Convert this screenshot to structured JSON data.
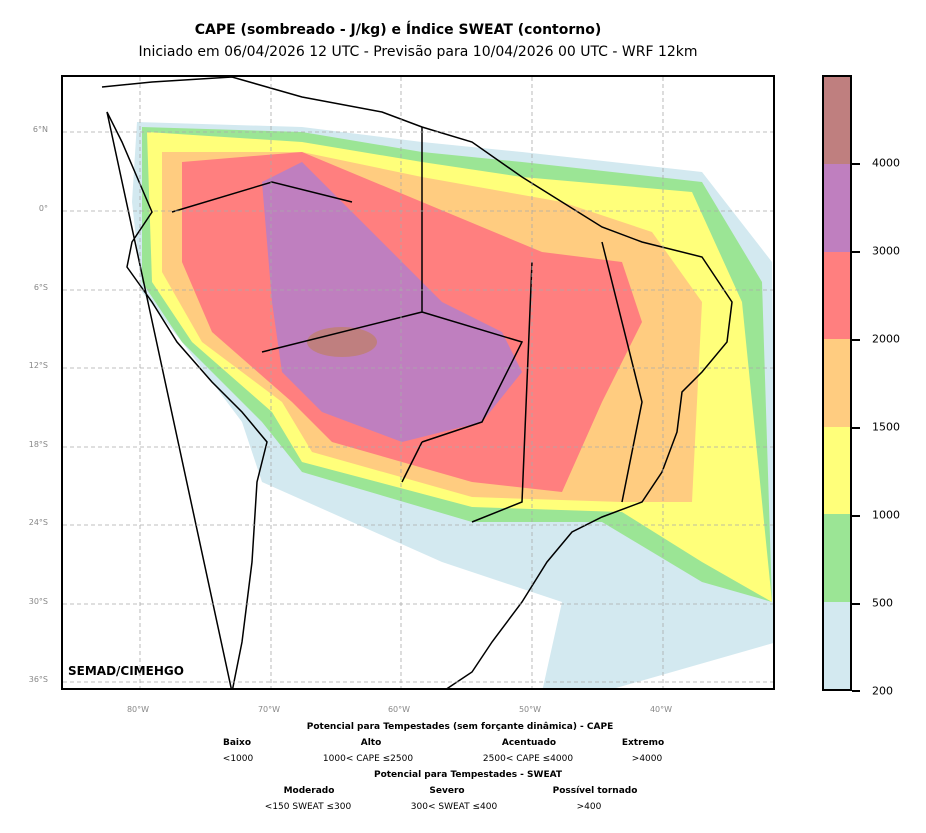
{
  "title": "CAPE (sombreado - J/kg) e Índice SWEAT (contorno)",
  "subtitle": "Iniciado em 06/04/2026 12 UTC - Previsão para 10/04/2026 00 UTC - WRF 12km",
  "watermark": "SEMAD/CIMEHGO",
  "map": {
    "lat_labels": [
      "6°N",
      "0°",
      "6°S",
      "12°S",
      "18°S",
      "24°S",
      "30°S",
      "36°S"
    ],
    "lon_labels": [
      "80°W",
      "70°W",
      "60°W",
      "50°W",
      "40°W"
    ]
  },
  "colorbar": {
    "ticks": [
      "200",
      "500",
      "1000",
      "1500",
      "2000",
      "3000",
      "4000"
    ],
    "colors": [
      "#d3e9f0",
      "#9be595",
      "#ffff7a",
      "#ffcc80",
      "#ff7f7f",
      "#bf7fbf",
      "#bf7f7f"
    ]
  },
  "legend": {
    "cape_title": "Potencial para Tempestades (sem forçante dinâmica) - CAPE",
    "cape": [
      {
        "label": "Baixo",
        "range": "<1000"
      },
      {
        "label": "Alto",
        "range": "1000< CAPE ≤2500"
      },
      {
        "label": "Acentuado",
        "range": "2500< CAPE ≤4000"
      },
      {
        "label": "Extremo",
        "range": ">4000"
      }
    ],
    "sweat_title": "Potencial para Tempestades - SWEAT",
    "sweat": [
      {
        "label": "Moderado",
        "range": "<150 SWEAT ≤300"
      },
      {
        "label": "Severo",
        "range": "300< SWEAT ≤400"
      },
      {
        "label": "Possível tornado",
        "range": ">400"
      }
    ]
  }
}
